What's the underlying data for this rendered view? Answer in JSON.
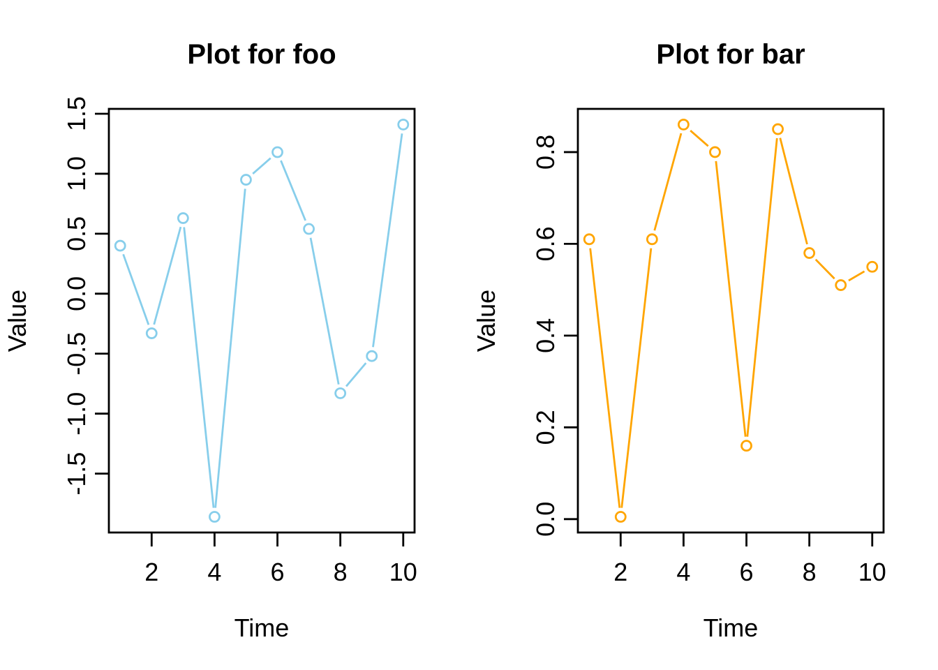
{
  "page": {
    "background_color": "#ffffff",
    "foreground_color": "#000000"
  },
  "chart_data": [
    {
      "type": "line",
      "title": "Plot for foo",
      "xlabel": "Time",
      "ylabel": "Value",
      "line_style": "both-points-and-lines",
      "marker": "open-circle",
      "color": "#87CEEB",
      "x": [
        1,
        2,
        3,
        4,
        5,
        6,
        7,
        8,
        9,
        10
      ],
      "values": [
        0.4,
        -0.33,
        0.63,
        -1.86,
        0.95,
        1.18,
        0.54,
        -0.83,
        -0.52,
        1.41
      ],
      "xlim": [
        1,
        10
      ],
      "ylim": [
        -1.86,
        1.41
      ],
      "x_ticks": [
        2,
        4,
        6,
        8,
        10
      ],
      "x_tick_labels": [
        "2",
        "4",
        "6",
        "8",
        "10"
      ],
      "y_ticks": [
        -1.5,
        -1.0,
        -0.5,
        0.0,
        0.5,
        1.0,
        1.5
      ],
      "y_tick_labels": [
        "-1.5",
        "-1.0",
        "-0.5",
        "0.0",
        "0.5",
        "1.0",
        "1.5"
      ],
      "axis_expansion": 0.04,
      "grid": false,
      "legend": null
    },
    {
      "type": "line",
      "title": "Plot for bar",
      "xlabel": "Time",
      "ylabel": "Value",
      "line_style": "both-points-and-lines",
      "marker": "open-circle",
      "color": "#FFA500",
      "x": [
        1,
        2,
        3,
        4,
        5,
        6,
        7,
        8,
        9,
        10
      ],
      "values": [
        0.61,
        0.005,
        0.61,
        0.86,
        0.8,
        0.16,
        0.85,
        0.58,
        0.51,
        0.55
      ],
      "xlim": [
        1,
        10
      ],
      "ylim": [
        0.005,
        0.86
      ],
      "x_ticks": [
        2,
        4,
        6,
        8,
        10
      ],
      "x_tick_labels": [
        "2",
        "4",
        "6",
        "8",
        "10"
      ],
      "y_ticks": [
        0.0,
        0.2,
        0.4,
        0.6,
        0.8
      ],
      "y_tick_labels": [
        "0.0",
        "0.2",
        "0.4",
        "0.6",
        "0.8"
      ],
      "axis_expansion": 0.04,
      "grid": false,
      "legend": null
    }
  ]
}
